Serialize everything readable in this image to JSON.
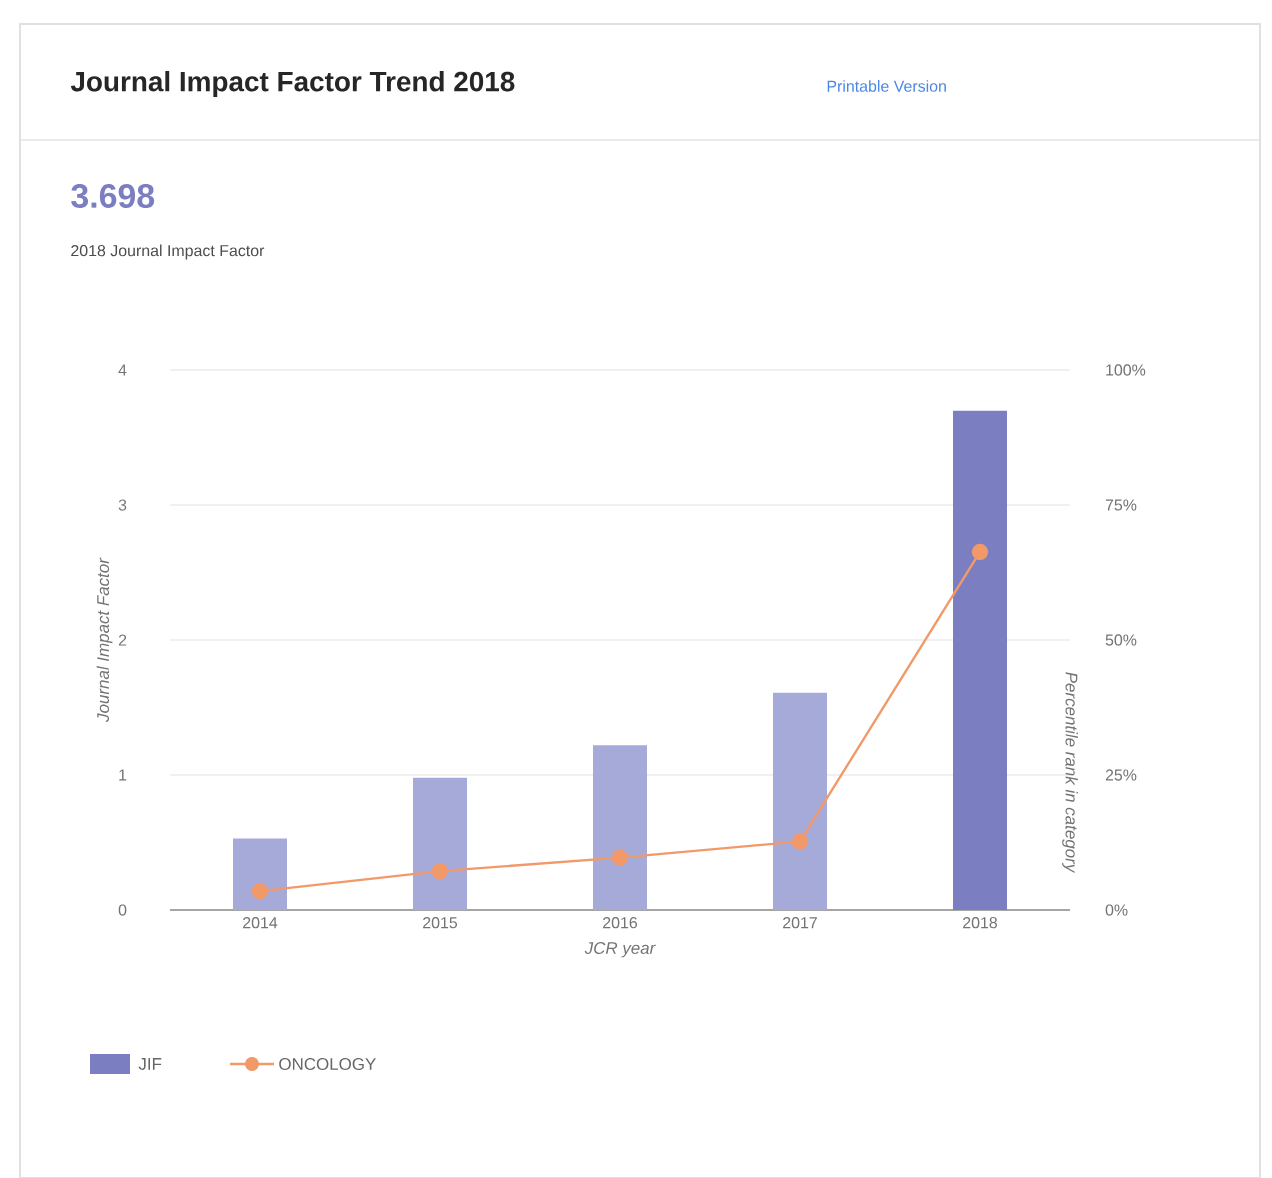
{
  "chart_data": {
    "type": "bar",
    "title": "Journal Impact Factor Trend 2018",
    "annotations": [
      "3.698",
      "2018 Journal Impact Factor",
      "Printable Version"
    ],
    "categories": [
      "2014",
      "2015",
      "2016",
      "2017",
      "2018"
    ],
    "xlabel": "JCR year",
    "ylabel": "Journal Impact Factor",
    "y2label": "Percentile rank in category",
    "series": [
      {
        "name": "JIF",
        "color": "#7b7fc1",
        "colors": [
          "#a5aad8",
          "#a5aad8",
          "#a5aad8",
          "#a5aad8",
          "#7b7fc1"
        ],
        "values": [
          0.53,
          0.98,
          1.22,
          1.61,
          3.698
        ]
      },
      {
        "name": "ONCOLOGY",
        "type": "line",
        "axis": "y2",
        "color": "#f2996a",
        "marker": "circle",
        "line_style": "solid",
        "values": [
          3.5,
          7.2,
          9.7,
          12.7,
          66.3
        ]
      }
    ],
    "ylim": [
      0,
      4
    ],
    "yticks": [
      0,
      1,
      2,
      3,
      4
    ],
    "y2lim": [
      0,
      100
    ],
    "y2ticks": [
      {
        "value": 0,
        "label": "0%"
      },
      {
        "value": 25,
        "label": "25%"
      },
      {
        "value": 50,
        "label": "50%"
      },
      {
        "value": 75,
        "label": "75%"
      },
      {
        "value": 100,
        "label": "100%"
      }
    ],
    "grid": "y",
    "legend": "bottom left"
  }
}
